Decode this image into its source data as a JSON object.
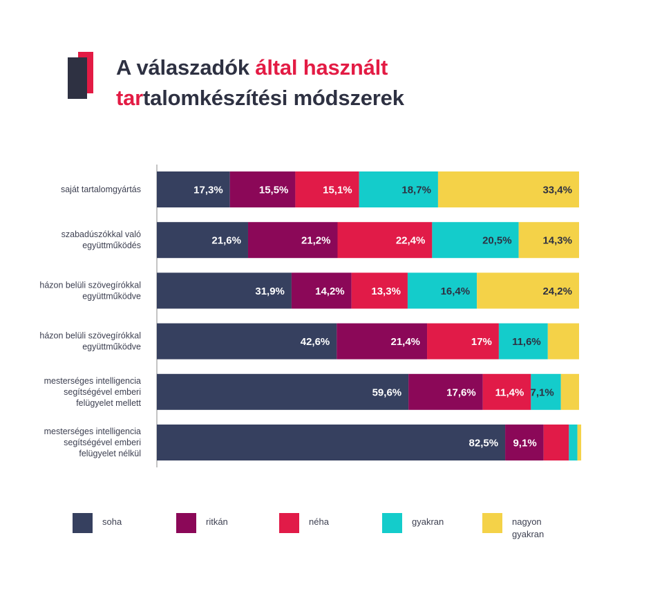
{
  "title": {
    "line1_plain": "A válaszadók ",
    "line1_accent": "által használt",
    "line2_accent": "tar",
    "line2_plain": "talomkészítési módszerek"
  },
  "colors": {
    "soha": "#36405f",
    "ritkan": "#8b0858",
    "neha": "#e11b48",
    "gyakran": "#14cccb",
    "nagyon_gyakran": "#f4d248",
    "axis": "#888888",
    "label_light": "#ffffff",
    "label_dark": "#2e3142"
  },
  "legend": [
    {
      "label": "soha"
    },
    {
      "label": "ritkán"
    },
    {
      "label": "néha"
    },
    {
      "label": "gyakran"
    },
    {
      "label": "nagyon gyakran"
    }
  ],
  "chart_data": {
    "type": "bar",
    "orientation": "horizontal",
    "stacked": true,
    "categories": [
      [
        "saját tartalomgyártás"
      ],
      [
        "szabadúszókkal való",
        "együttműködés"
      ],
      [
        "házon belüli szövegírókkal",
        "együttműködve"
      ],
      [
        "házon belüli szövegírókkal",
        "együttműködve"
      ],
      [
        "mesterséges intelligencia",
        "segítségével emberi",
        "felügyelet mellett"
      ],
      [
        "mesterséges intelligencia",
        "segítségével emberi",
        "felügyelet nélkül"
      ]
    ],
    "series": [
      {
        "name": "soha",
        "values": [
          17.3,
          21.6,
          31.9,
          42.6,
          59.6,
          82.5
        ],
        "labels": [
          "17,3%",
          "21,6%",
          "31,9%",
          "42,6%",
          "59,6%",
          "82,5%"
        ]
      },
      {
        "name": "ritkán",
        "values": [
          15.5,
          21.2,
          14.2,
          21.4,
          17.6,
          9.1
        ],
        "labels": [
          "15,5%",
          "21,2%",
          "14,2%",
          "21,4%",
          "17,6%",
          "9,1%"
        ]
      },
      {
        "name": "néha",
        "values": [
          15.1,
          22.4,
          13.3,
          17.0,
          11.4,
          6.0
        ],
        "labels": [
          "15,1%",
          "22,4%",
          "13,3%",
          "17%",
          "11,4%",
          ""
        ]
      },
      {
        "name": "gyakran",
        "values": [
          18.7,
          20.5,
          16.4,
          11.6,
          7.1,
          2.0
        ],
        "labels": [
          "18,7%",
          "20,5%",
          "16,4%",
          "11,6%",
          "7,1%",
          ""
        ]
      },
      {
        "name": "nagyon gyakran",
        "values": [
          33.4,
          14.3,
          24.2,
          7.4,
          4.3,
          0.9
        ],
        "labels": [
          "33,4%",
          "14,3%",
          "24,2%",
          "",
          "",
          ""
        ]
      }
    ],
    "xlim": [
      0,
      100
    ],
    "grid": false,
    "legend_position": "bottom"
  }
}
